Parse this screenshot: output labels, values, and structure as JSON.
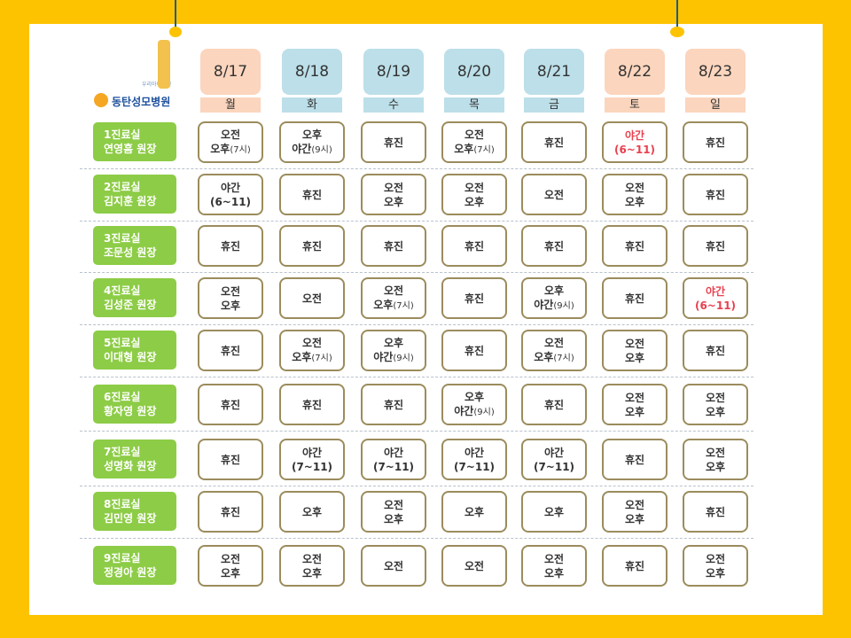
{
  "header": {
    "logo_small": "우리아이병원",
    "logo": "동탄성모병원"
  },
  "days": [
    {
      "date": "8/17",
      "weekday": "월",
      "color": "#fbd5bd"
    },
    {
      "date": "8/18",
      "weekday": "화",
      "color": "#bcdfe9"
    },
    {
      "date": "8/19",
      "weekday": "수",
      "color": "#bcdfe9"
    },
    {
      "date": "8/20",
      "weekday": "목",
      "color": "#bcdfe9"
    },
    {
      "date": "8/21",
      "weekday": "금",
      "color": "#bcdfe9"
    },
    {
      "date": "8/22",
      "weekday": "토",
      "color": "#fbd5bd"
    },
    {
      "date": "8/23",
      "weekday": "일",
      "color": "#fbd5bd"
    }
  ],
  "rows": [
    {
      "room": "1진료실",
      "doctor": "연영흠 원장",
      "cells": [
        {
          "lines": [
            "오전",
            "오후(7시)"
          ]
        },
        {
          "lines": [
            "오후",
            "야간(9시)"
          ]
        },
        {
          "lines": [
            "휴진"
          ]
        },
        {
          "lines": [
            "오전",
            "오후(7시)"
          ]
        },
        {
          "lines": [
            "휴진"
          ]
        },
        {
          "lines": [
            "야간",
            "(6~11)"
          ],
          "color": "#e8414f"
        },
        {
          "lines": [
            "휴진"
          ]
        }
      ]
    },
    {
      "room": "2진료실",
      "doctor": "김지훈 원장",
      "cells": [
        {
          "lines": [
            "야간",
            "(6~11)"
          ]
        },
        {
          "lines": [
            "휴진"
          ]
        },
        {
          "lines": [
            "오전",
            "오후"
          ]
        },
        {
          "lines": [
            "오전",
            "오후"
          ]
        },
        {
          "lines": [
            "오전"
          ]
        },
        {
          "lines": [
            "오전",
            "오후"
          ]
        },
        {
          "lines": [
            "휴진"
          ]
        }
      ]
    },
    {
      "room": "3진료실",
      "doctor": "조문성 원장",
      "cells": [
        {
          "lines": [
            "휴진"
          ]
        },
        {
          "lines": [
            "휴진"
          ]
        },
        {
          "lines": [
            "휴진"
          ]
        },
        {
          "lines": [
            "휴진"
          ]
        },
        {
          "lines": [
            "휴진"
          ]
        },
        {
          "lines": [
            "휴진"
          ]
        },
        {
          "lines": [
            "휴진"
          ]
        }
      ]
    },
    {
      "room": "4진료실",
      "doctor": "김성준 원장",
      "cells": [
        {
          "lines": [
            "오전",
            "오후"
          ]
        },
        {
          "lines": [
            "오전"
          ]
        },
        {
          "lines": [
            "오전",
            "오후(7시)"
          ]
        },
        {
          "lines": [
            "휴진"
          ]
        },
        {
          "lines": [
            "오후",
            "야간(9시)"
          ]
        },
        {
          "lines": [
            "휴진"
          ]
        },
        {
          "lines": [
            "야간",
            "(6~11)"
          ],
          "color": "#e8414f"
        }
      ]
    },
    {
      "room": "5진료실",
      "doctor": "이대형 원장",
      "cells": [
        {
          "lines": [
            "휴진"
          ]
        },
        {
          "lines": [
            "오전",
            "오후(7시)"
          ]
        },
        {
          "lines": [
            "오후",
            "야간(9시)"
          ]
        },
        {
          "lines": [
            "휴진"
          ]
        },
        {
          "lines": [
            "오전",
            "오후(7시)"
          ]
        },
        {
          "lines": [
            "오전",
            "오후"
          ]
        },
        {
          "lines": [
            "휴진"
          ]
        }
      ]
    },
    {
      "room": "6진료실",
      "doctor": "황자영 원장",
      "cells": [
        {
          "lines": [
            "휴진"
          ]
        },
        {
          "lines": [
            "휴진"
          ]
        },
        {
          "lines": [
            "휴진"
          ]
        },
        {
          "lines": [
            "오후",
            "야간(9시)"
          ]
        },
        {
          "lines": [
            "휴진"
          ]
        },
        {
          "lines": [
            "오전",
            "오후"
          ]
        },
        {
          "lines": [
            "오전",
            "오후"
          ]
        }
      ]
    },
    {
      "room": "7진료실",
      "doctor": "성명화 원장",
      "cells": [
        {
          "lines": [
            "휴진"
          ]
        },
        {
          "lines": [
            "야간",
            "(7~11)"
          ]
        },
        {
          "lines": [
            "야간",
            "(7~11)"
          ]
        },
        {
          "lines": [
            "야간",
            "(7~11)"
          ]
        },
        {
          "lines": [
            "야간",
            "(7~11)"
          ]
        },
        {
          "lines": [
            "휴진"
          ]
        },
        {
          "lines": [
            "오전",
            "오후"
          ]
        }
      ]
    },
    {
      "room": "8진료실",
      "doctor": "김민영 원장",
      "cells": [
        {
          "lines": [
            "휴진"
          ]
        },
        {
          "lines": [
            "오후"
          ]
        },
        {
          "lines": [
            "오전",
            "오후"
          ]
        },
        {
          "lines": [
            "오후"
          ]
        },
        {
          "lines": [
            "오후"
          ]
        },
        {
          "lines": [
            "오전",
            "오후"
          ]
        },
        {
          "lines": [
            "휴진"
          ]
        }
      ]
    },
    {
      "room": "9진료실",
      "doctor": "정경아 원장",
      "cells": [
        {
          "lines": [
            "오전",
            "오후"
          ]
        },
        {
          "lines": [
            "오전",
            "오후"
          ]
        },
        {
          "lines": [
            "오전"
          ]
        },
        {
          "lines": [
            "오전"
          ]
        },
        {
          "lines": [
            "오전",
            "오후"
          ]
        },
        {
          "lines": [
            "휴진"
          ]
        },
        {
          "lines": [
            "오전",
            "오후"
          ]
        }
      ]
    }
  ]
}
